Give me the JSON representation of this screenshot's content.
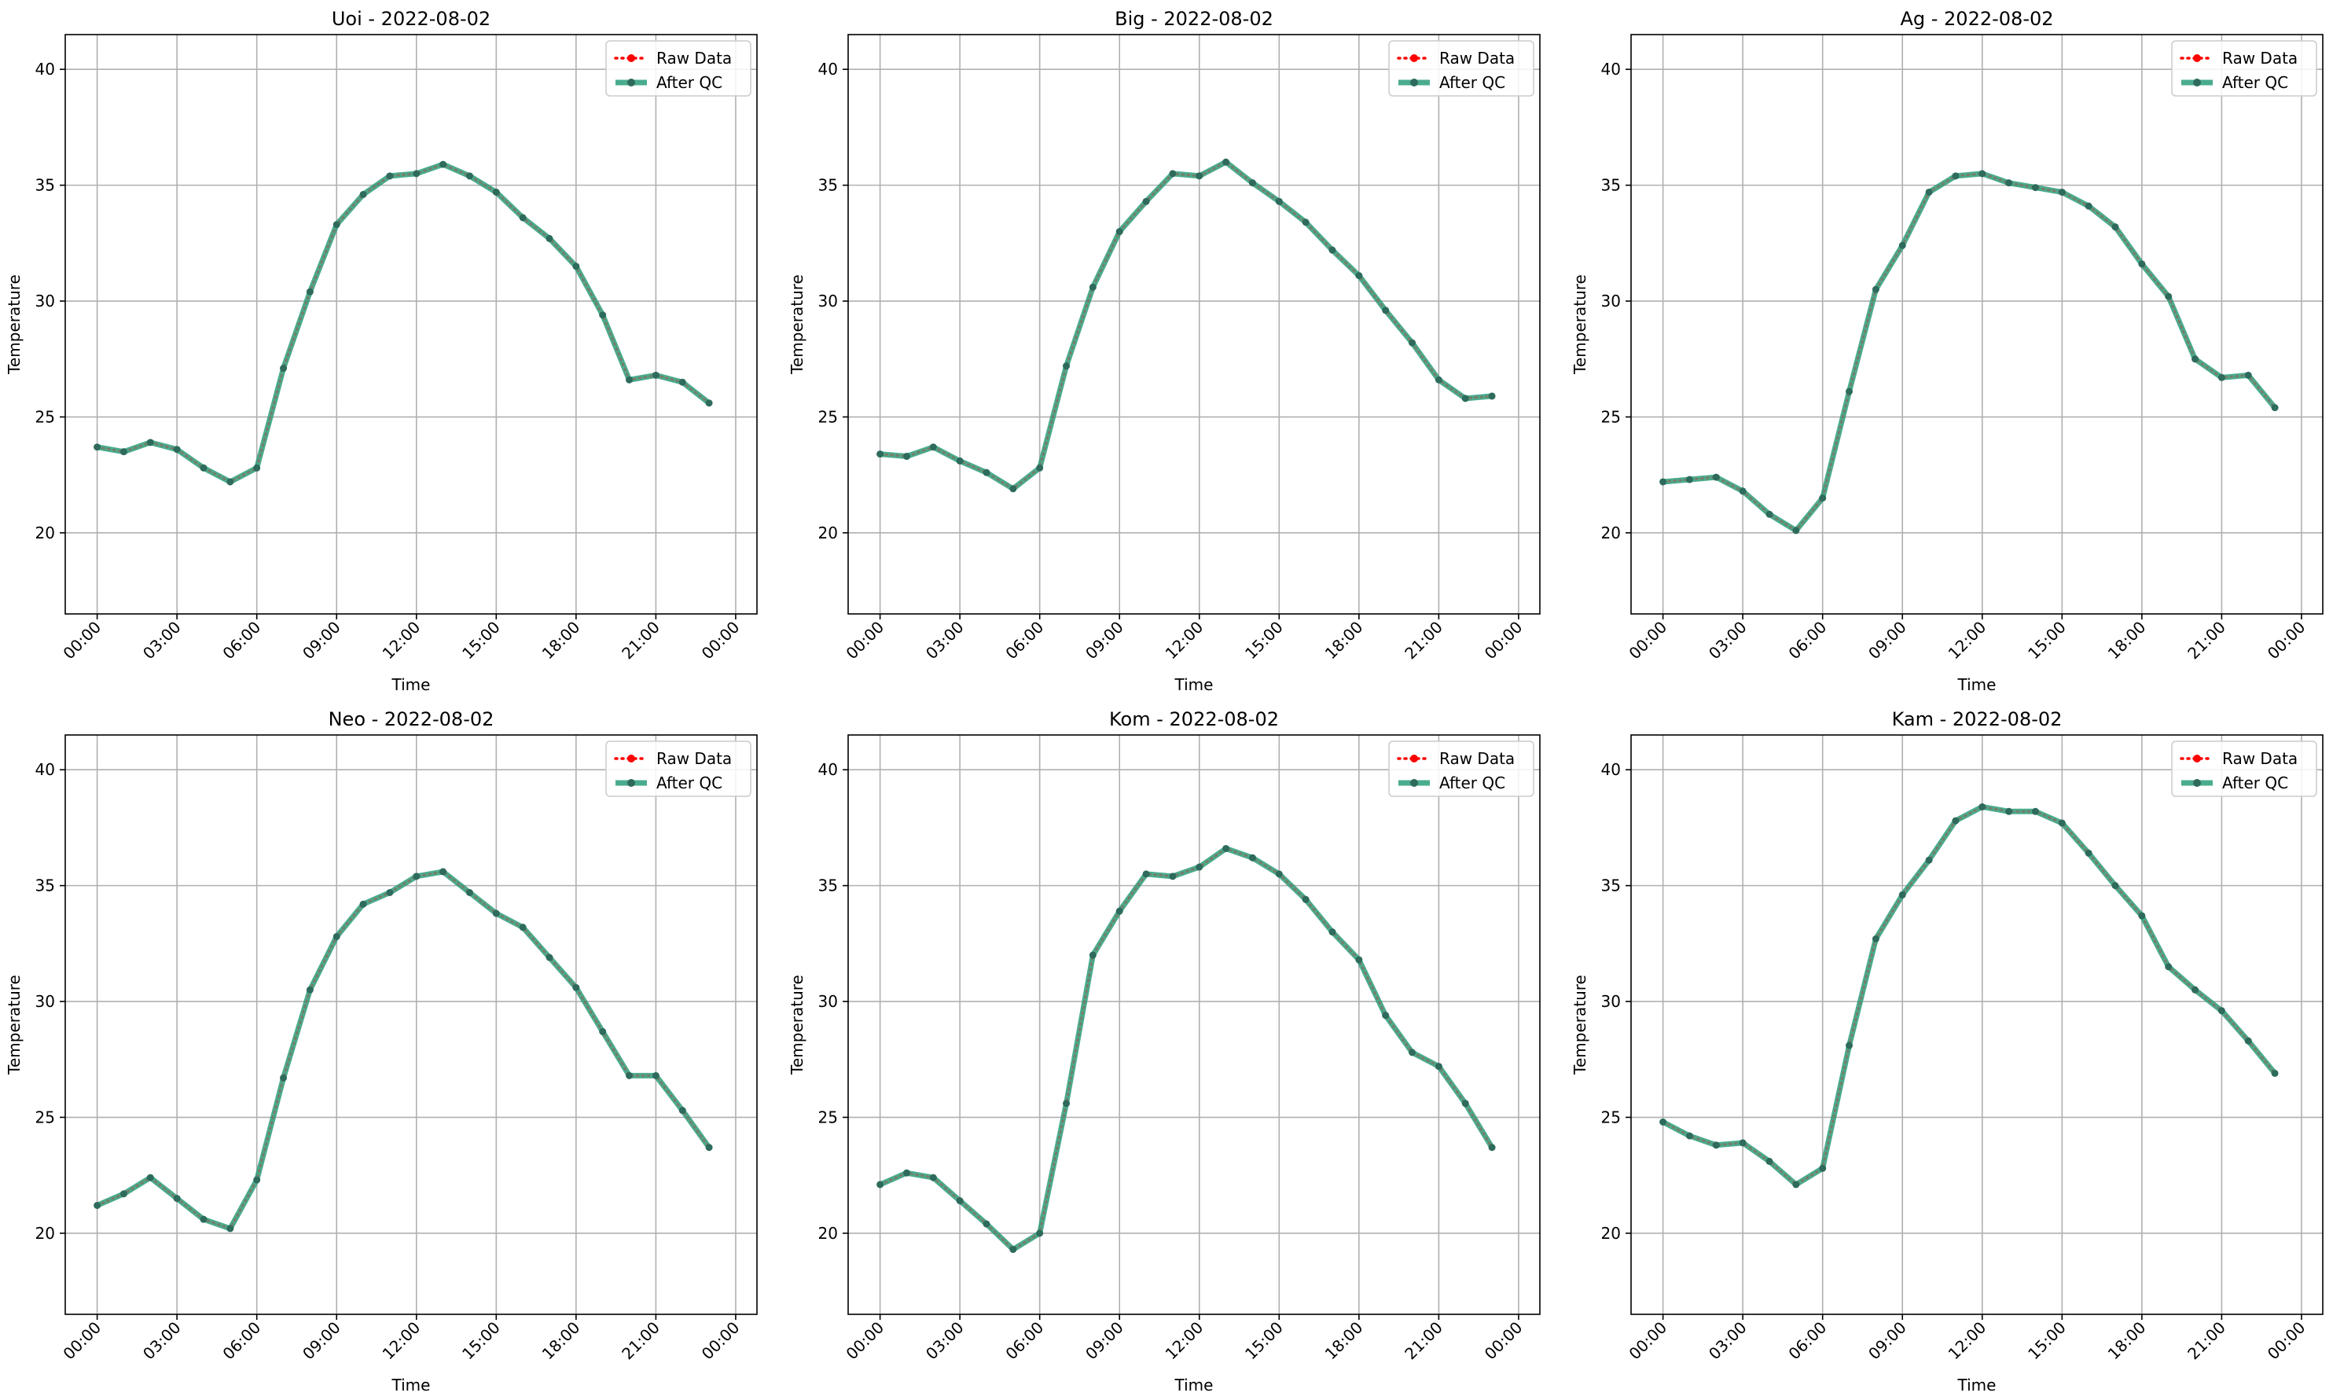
{
  "chart_data": [
    {
      "type": "line",
      "title": "Uoi - 2022-08-02",
      "xlabel": "Time",
      "ylabel": "Temperature",
      "ylim": [
        16.5,
        41.5
      ],
      "yticks": [
        20,
        25,
        30,
        35,
        40
      ],
      "xticks": [
        "00:00",
        "03:00",
        "06:00",
        "09:00",
        "12:00",
        "15:00",
        "18:00",
        "21:00",
        "00:00"
      ],
      "x_hours": [
        0,
        1,
        2,
        3,
        4,
        5,
        6,
        7,
        8,
        9,
        10,
        11,
        12,
        13,
        14,
        15,
        16,
        17,
        18,
        19,
        20,
        21,
        22,
        23
      ],
      "grid": true,
      "legend_position": "top-right",
      "series": [
        {
          "name": "Raw Data",
          "color": "#ff0000",
          "style": "dotted",
          "values": [
            23.7,
            23.5,
            23.9,
            23.6,
            22.8,
            22.2,
            22.8,
            27.1,
            30.4,
            33.3,
            34.6,
            35.4,
            35.5,
            35.9,
            35.4,
            34.7,
            33.6,
            32.7,
            31.5,
            29.4,
            26.6,
            26.8,
            26.5,
            25.6
          ]
        },
        {
          "name": "After QC",
          "color": "#2a9d7a",
          "style": "solid",
          "values": [
            23.7,
            23.5,
            23.9,
            23.6,
            22.8,
            22.2,
            22.8,
            27.1,
            30.4,
            33.3,
            34.6,
            35.4,
            35.5,
            35.9,
            35.4,
            34.7,
            33.6,
            32.7,
            31.5,
            29.4,
            26.6,
            26.8,
            26.5,
            25.6
          ]
        }
      ]
    },
    {
      "type": "line",
      "title": "Big - 2022-08-02",
      "xlabel": "Time",
      "ylabel": "Temperature",
      "ylim": [
        16.5,
        41.5
      ],
      "yticks": [
        20,
        25,
        30,
        35,
        40
      ],
      "xticks": [
        "00:00",
        "03:00",
        "06:00",
        "09:00",
        "12:00",
        "15:00",
        "18:00",
        "21:00",
        "00:00"
      ],
      "x_hours": [
        0,
        1,
        2,
        3,
        4,
        5,
        6,
        7,
        8,
        9,
        10,
        11,
        12,
        13,
        14,
        15,
        16,
        17,
        18,
        19,
        20,
        21,
        22,
        23
      ],
      "grid": true,
      "legend_position": "top-right",
      "series": [
        {
          "name": "Raw Data",
          "color": "#ff0000",
          "style": "dotted",
          "values": [
            23.4,
            23.3,
            23.7,
            23.1,
            22.6,
            21.9,
            22.8,
            27.2,
            30.6,
            33.0,
            34.3,
            35.5,
            35.4,
            36.0,
            35.1,
            34.3,
            33.4,
            32.2,
            31.1,
            29.6,
            28.2,
            26.6,
            25.8,
            25.9
          ]
        },
        {
          "name": "After QC",
          "color": "#2a9d7a",
          "style": "solid",
          "values": [
            23.4,
            23.3,
            23.7,
            23.1,
            22.6,
            21.9,
            22.8,
            27.2,
            30.6,
            33.0,
            34.3,
            35.5,
            35.4,
            36.0,
            35.1,
            34.3,
            33.4,
            32.2,
            31.1,
            29.6,
            28.2,
            26.6,
            25.8,
            25.9
          ]
        }
      ]
    },
    {
      "type": "line",
      "title": "Ag - 2022-08-02",
      "xlabel": "Time",
      "ylabel": "Temperature",
      "ylim": [
        16.5,
        41.5
      ],
      "yticks": [
        20,
        25,
        30,
        35,
        40
      ],
      "xticks": [
        "00:00",
        "03:00",
        "06:00",
        "09:00",
        "12:00",
        "15:00",
        "18:00",
        "21:00",
        "00:00"
      ],
      "x_hours": [
        0,
        1,
        2,
        3,
        4,
        5,
        6,
        7,
        8,
        9,
        10,
        11,
        12,
        13,
        14,
        15,
        16,
        17,
        18,
        19,
        20,
        21,
        22,
        23
      ],
      "grid": true,
      "legend_position": "top-right",
      "series": [
        {
          "name": "Raw Data",
          "color": "#ff0000",
          "style": "dotted",
          "values": [
            22.2,
            22.3,
            22.4,
            21.8,
            20.8,
            20.1,
            21.5,
            26.1,
            30.5,
            32.4,
            34.7,
            35.4,
            35.5,
            35.1,
            34.9,
            34.7,
            34.1,
            33.2,
            31.6,
            30.2,
            27.5,
            26.7,
            26.8,
            25.4
          ]
        },
        {
          "name": "After QC",
          "color": "#2a9d7a",
          "style": "solid",
          "values": [
            22.2,
            22.3,
            22.4,
            21.8,
            20.8,
            20.1,
            21.5,
            26.1,
            30.5,
            32.4,
            34.7,
            35.4,
            35.5,
            35.1,
            34.9,
            34.7,
            34.1,
            33.2,
            31.6,
            30.2,
            27.5,
            26.7,
            26.8,
            25.4
          ]
        }
      ]
    },
    {
      "type": "line",
      "title": "Neo - 2022-08-02",
      "xlabel": "Time",
      "ylabel": "Temperature",
      "ylim": [
        16.5,
        41.5
      ],
      "yticks": [
        20,
        25,
        30,
        35,
        40
      ],
      "xticks": [
        "00:00",
        "03:00",
        "06:00",
        "09:00",
        "12:00",
        "15:00",
        "18:00",
        "21:00",
        "00:00"
      ],
      "x_hours": [
        0,
        1,
        2,
        3,
        4,
        5,
        6,
        7,
        8,
        9,
        10,
        11,
        12,
        13,
        14,
        15,
        16,
        17,
        18,
        19,
        20,
        21,
        22,
        23
      ],
      "grid": true,
      "legend_position": "top-right",
      "series": [
        {
          "name": "Raw Data",
          "color": "#ff0000",
          "style": "dotted",
          "values": [
            21.2,
            21.7,
            22.4,
            21.5,
            20.6,
            20.2,
            22.3,
            26.7,
            30.5,
            32.8,
            34.2,
            34.7,
            35.4,
            35.6,
            34.7,
            33.8,
            33.2,
            31.9,
            30.6,
            28.7,
            26.8,
            26.8,
            25.3,
            23.7
          ]
        },
        {
          "name": "After QC",
          "color": "#2a9d7a",
          "style": "solid",
          "values": [
            21.2,
            21.7,
            22.4,
            21.5,
            20.6,
            20.2,
            22.3,
            26.7,
            30.5,
            32.8,
            34.2,
            34.7,
            35.4,
            35.6,
            34.7,
            33.8,
            33.2,
            31.9,
            30.6,
            28.7,
            26.8,
            26.8,
            25.3,
            23.7
          ]
        }
      ]
    },
    {
      "type": "line",
      "title": "Kom - 2022-08-02",
      "xlabel": "Time",
      "ylabel": "Temperature",
      "ylim": [
        16.5,
        41.5
      ],
      "yticks": [
        20,
        25,
        30,
        35,
        40
      ],
      "xticks": [
        "00:00",
        "03:00",
        "06:00",
        "09:00",
        "12:00",
        "15:00",
        "18:00",
        "21:00",
        "00:00"
      ],
      "x_hours": [
        0,
        1,
        2,
        3,
        4,
        5,
        6,
        7,
        8,
        9,
        10,
        11,
        12,
        13,
        14,
        15,
        16,
        17,
        18,
        19,
        20,
        21,
        22,
        23
      ],
      "grid": true,
      "legend_position": "top-right",
      "series": [
        {
          "name": "Raw Data",
          "color": "#ff0000",
          "style": "dotted",
          "values": [
            22.1,
            22.6,
            22.4,
            21.4,
            20.4,
            19.3,
            20.0,
            25.6,
            32.0,
            33.9,
            35.5,
            35.4,
            35.8,
            36.6,
            36.2,
            35.5,
            34.4,
            33.0,
            31.8,
            29.4,
            27.8,
            27.2,
            25.6,
            23.7
          ]
        },
        {
          "name": "After QC",
          "color": "#2a9d7a",
          "style": "solid",
          "values": [
            22.1,
            22.6,
            22.4,
            21.4,
            20.4,
            19.3,
            20.0,
            25.6,
            32.0,
            33.9,
            35.5,
            35.4,
            35.8,
            36.6,
            36.2,
            35.5,
            34.4,
            33.0,
            31.8,
            29.4,
            27.8,
            27.2,
            25.6,
            23.7
          ]
        }
      ]
    },
    {
      "type": "line",
      "title": "Kam - 2022-08-02",
      "xlabel": "Time",
      "ylabel": "Temperature",
      "ylim": [
        16.5,
        41.5
      ],
      "yticks": [
        20,
        25,
        30,
        35,
        40
      ],
      "xticks": [
        "00:00",
        "03:00",
        "06:00",
        "09:00",
        "12:00",
        "15:00",
        "18:00",
        "21:00",
        "00:00"
      ],
      "x_hours": [
        0,
        1,
        2,
        3,
        4,
        5,
        6,
        7,
        8,
        9,
        10,
        11,
        12,
        13,
        14,
        15,
        16,
        17,
        18,
        19,
        20,
        21,
        22,
        23
      ],
      "grid": true,
      "legend_position": "top-right",
      "series": [
        {
          "name": "Raw Data",
          "color": "#ff0000",
          "style": "dotted",
          "values": [
            24.8,
            24.2,
            23.8,
            23.9,
            23.1,
            22.1,
            22.8,
            28.1,
            32.7,
            34.6,
            36.1,
            37.8,
            38.4,
            38.2,
            38.2,
            37.7,
            36.4,
            35.0,
            33.7,
            31.5,
            30.5,
            29.6,
            28.3,
            26.9
          ]
        },
        {
          "name": "After QC",
          "color": "#2a9d7a",
          "style": "solid",
          "values": [
            24.8,
            24.2,
            23.8,
            23.9,
            23.1,
            22.1,
            22.8,
            28.1,
            32.7,
            34.6,
            36.1,
            37.8,
            38.4,
            38.2,
            38.2,
            37.7,
            36.4,
            35.0,
            33.7,
            31.5,
            30.5,
            29.6,
            28.3,
            26.9
          ]
        }
      ]
    }
  ]
}
